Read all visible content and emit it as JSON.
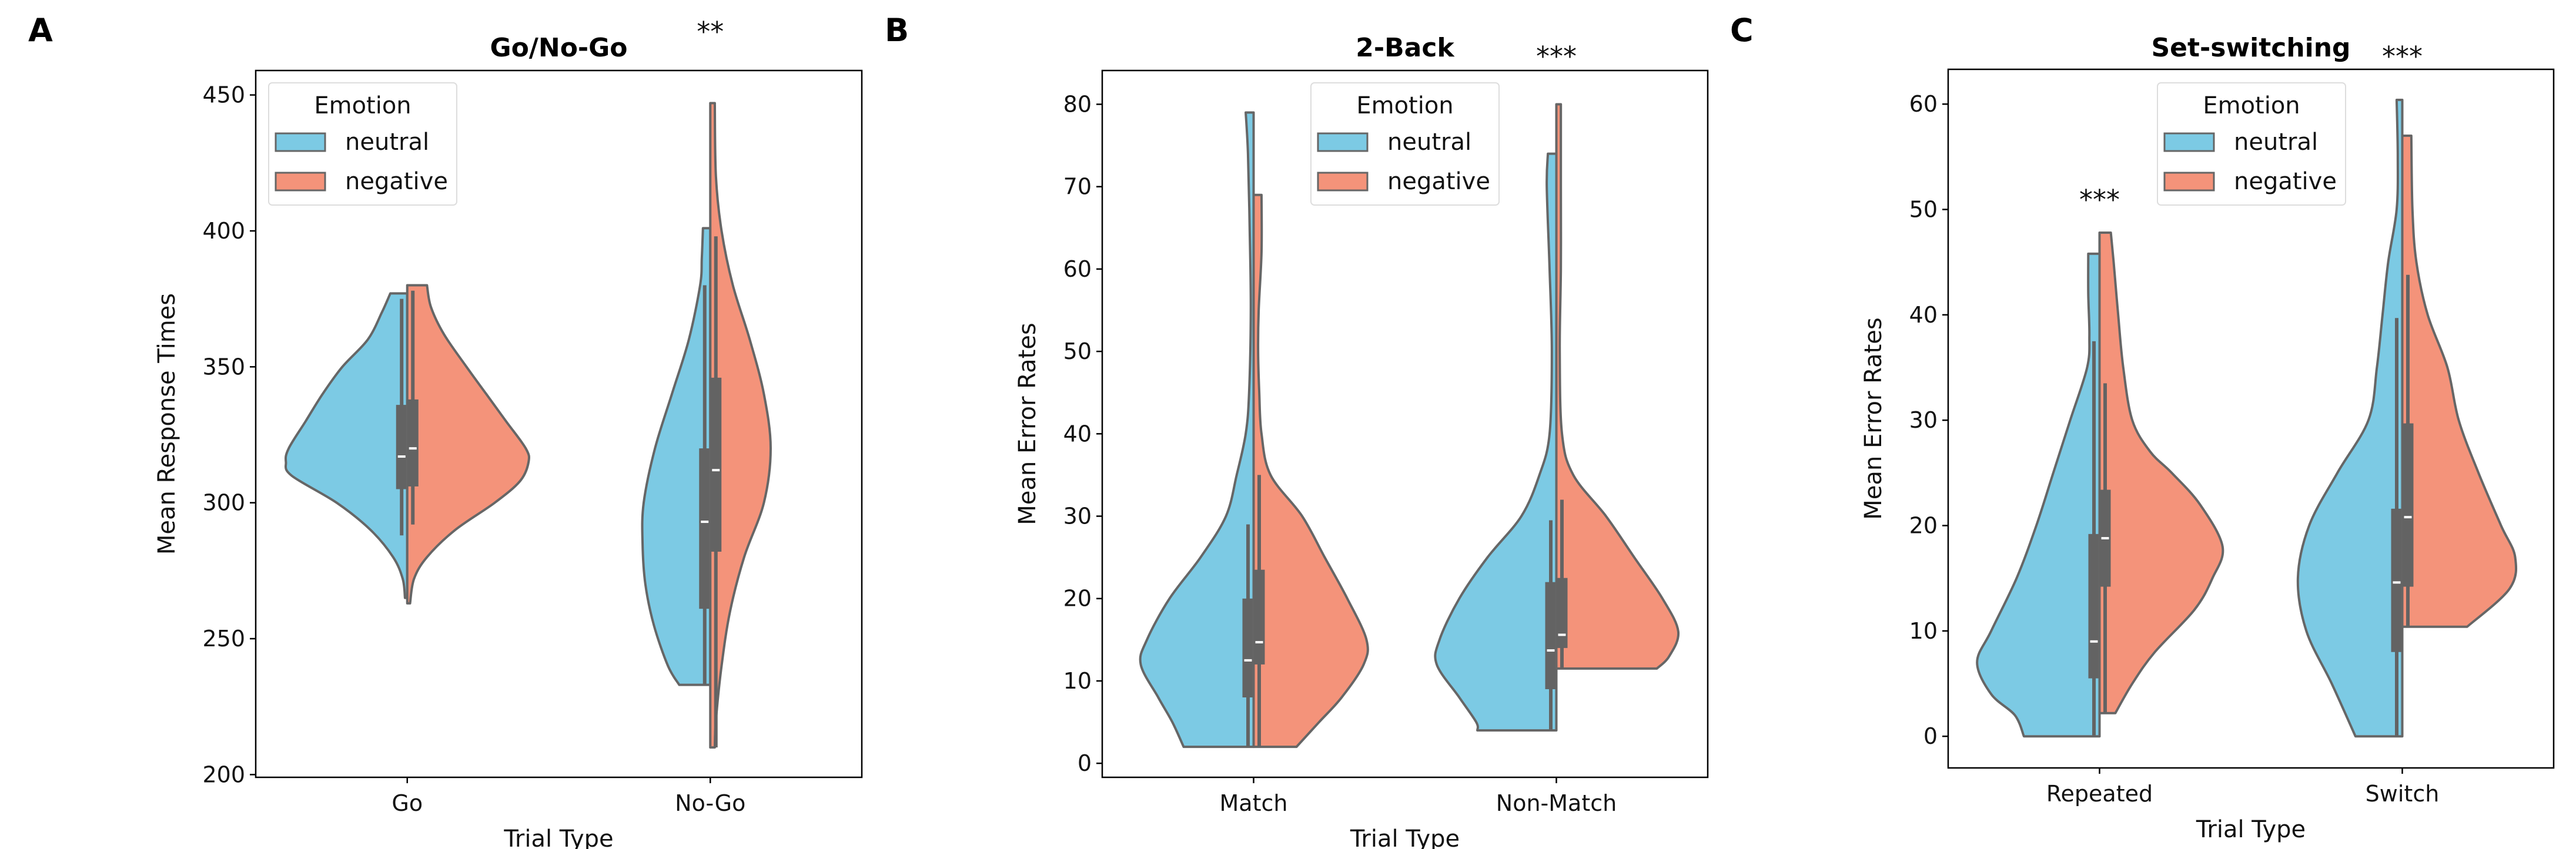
{
  "colors": {
    "neutral": "#7ccae4",
    "negative": "#f4937a",
    "edge": "#666666",
    "box": "#636363",
    "median": "#ffffff"
  },
  "chart_data": [
    {
      "type": "violin-split",
      "panel_label": "A",
      "title": "Go/No-Go",
      "xlabel": "Trial Type",
      "ylabel": "Mean Response Times",
      "ylim": [
        199,
        459
      ],
      "yticks": [
        200,
        250,
        300,
        350,
        400,
        450
      ],
      "categories": [
        "Go",
        "No-Go"
      ],
      "legend": {
        "title": "Emotion",
        "entries": [
          "neutral",
          "negative"
        ],
        "placement": "upper-left"
      },
      "annotations": [
        {
          "category": "No-Go",
          "text": "**",
          "placement": "above-axes"
        }
      ],
      "violins": [
        {
          "neutral": {
            "box": {
              "whisker_low": 288,
              "q1": 305,
              "median": 317,
              "q3": 336,
              "whisker_high": 375
            },
            "profile": [
              [
                377,
                30
              ],
              [
                370,
                45
              ],
              [
                360,
                70
              ],
              [
                350,
                115
              ],
              [
                340,
                150
              ],
              [
                330,
                180
              ],
              [
                320,
                210
              ],
              [
                315,
                215
              ],
              [
                310,
                205
              ],
              [
                300,
                125
              ],
              [
                290,
                65
              ],
              [
                280,
                25
              ],
              [
                272,
                8
              ],
              [
                265,
                4
              ]
            ]
          },
          "negative": {
            "box": {
              "whisker_low": 292,
              "q1": 306,
              "median": 320,
              "q3": 338,
              "whisker_high": 378
            },
            "profile": [
              [
                380,
                35
              ],
              [
                372,
                42
              ],
              [
                362,
                65
              ],
              [
                350,
                105
              ],
              [
                340,
                140
              ],
              [
                330,
                175
              ],
              [
                320,
                210
              ],
              [
                315,
                215
              ],
              [
                308,
                200
              ],
              [
                300,
                155
              ],
              [
                290,
                85
              ],
              [
                280,
                35
              ],
              [
                272,
                12
              ],
              [
                263,
                5
              ]
            ]
          }
        },
        {
          "neutral": {
            "box": {
              "whisker_low": 233,
              "q1": 261,
              "median": 293,
              "q3": 320,
              "whisker_high": 380
            },
            "profile": [
              [
                401,
                13
              ],
              [
                390,
                15
              ],
              [
                380,
                18
              ],
              [
                360,
                38
              ],
              [
                340,
                68
              ],
              [
                320,
                98
              ],
              [
                300,
                118
              ],
              [
                285,
                120
              ],
              [
                270,
                115
              ],
              [
                255,
                100
              ],
              [
                240,
                75
              ],
              [
                233,
                55
              ]
            ]
          },
          "negative": {
            "box": {
              "whisker_low": 210,
              "q1": 282,
              "median": 312,
              "q3": 346,
              "whisker_high": 398
            },
            "profile": [
              [
                447,
                8
              ],
              [
                420,
                10
              ],
              [
                400,
                20
              ],
              [
                380,
                40
              ],
              [
                360,
                70
              ],
              [
                340,
                95
              ],
              [
                320,
                107
              ],
              [
                300,
                95
              ],
              [
                280,
                60
              ],
              [
                260,
                35
              ],
              [
                240,
                20
              ],
              [
                220,
                10
              ],
              [
                210,
                8
              ]
            ]
          }
        }
      ]
    },
    {
      "type": "violin-split",
      "panel_label": "B",
      "title": "2-Back",
      "xlabel": "Trial Type",
      "ylabel": "Mean Error Rates",
      "ylim": [
        -1.7,
        84.1
      ],
      "yticks": [
        0,
        10,
        20,
        30,
        40,
        50,
        60,
        70,
        80
      ],
      "categories": [
        "Match",
        "Non-Match"
      ],
      "legend": {
        "title": "Emotion",
        "entries": [
          "neutral",
          "negative"
        ],
        "placement": "upper-center"
      },
      "annotations": [
        {
          "category": "Non-Match",
          "text": "***",
          "placement": "above-axes"
        }
      ],
      "violins": [
        {
          "neutral": {
            "box": {
              "whisker_low": 2,
              "q1": 8,
              "median": 12.5,
              "q3": 20,
              "whisker_high": 29
            },
            "profile": [
              [
                79,
                14
              ],
              [
                74,
                10
              ],
              [
                65,
                7
              ],
              [
                55,
                5
              ],
              [
                45,
                8
              ],
              [
                40,
                14
              ],
              [
                35,
                30
              ],
              [
                30,
                49
              ],
              [
                25,
                94
              ],
              [
                20,
                149
              ],
              [
                15,
                189
              ],
              [
                12,
                200
              ],
              [
                8,
                169
              ],
              [
                5,
                144
              ],
              [
                2,
                124
              ]
            ]
          },
          "negative": {
            "box": {
              "whisker_low": 2,
              "q1": 12,
              "median": 14.7,
              "q3": 23.5,
              "whisker_high": 35
            },
            "profile": [
              [
                69,
                14
              ],
              [
                62,
                14
              ],
              [
                55,
                9
              ],
              [
                50,
                8
              ],
              [
                45,
                10
              ],
              [
                40,
                14
              ],
              [
                35,
                30
              ],
              [
                30,
                86
              ],
              [
                25,
                126
              ],
              [
                20,
                166
              ],
              [
                15,
                200
              ],
              [
                12,
                195
              ],
              [
                8,
                156
              ],
              [
                5,
                116
              ],
              [
                2,
                76
              ]
            ]
          }
        },
        {
          "neutral": {
            "box": {
              "whisker_low": 4,
              "q1": 9,
              "median": 13.7,
              "q3": 22,
              "whisker_high": 29.5
            },
            "profile": [
              [
                74,
                15
              ],
              [
                70,
                17
              ],
              [
                60,
                12
              ],
              [
                50,
                8
              ],
              [
                40,
                12
              ],
              [
                35,
                30
              ],
              [
                30,
                62
              ],
              [
                25,
                122
              ],
              [
                20,
                172
              ],
              [
                15,
                207
              ],
              [
                12,
                212
              ],
              [
                8,
                172
              ],
              [
                5,
                142
              ],
              [
                4,
                140
              ]
            ]
          },
          "negative": {
            "box": {
              "whisker_low": 11.5,
              "q1": 14,
              "median": 15.6,
              "q3": 22.5,
              "whisker_high": 32
            },
            "profile": [
              [
                80,
                8
              ],
              [
                70,
                8
              ],
              [
                60,
                8
              ],
              [
                50,
                6
              ],
              [
                40,
                10
              ],
              [
                35,
                30
              ],
              [
                30,
                88
              ],
              [
                25,
                138
              ],
              [
                20,
                188
              ],
              [
                16,
                216
              ],
              [
                13,
                200
              ],
              [
                11.5,
                178
              ]
            ]
          }
        }
      ]
    },
    {
      "type": "violin-split",
      "panel_label": "C",
      "title": "Set-switching",
      "xlabel": "Trial Type",
      "ylabel": "Mean Error Rates",
      "ylim": [
        -3.0,
        63.3
      ],
      "yticks": [
        0,
        10,
        20,
        30,
        40,
        50,
        60
      ],
      "categories": [
        "Repeated",
        "Switch"
      ],
      "legend": {
        "title": "Emotion",
        "entries": [
          "neutral",
          "negative"
        ],
        "placement": "upper-center"
      },
      "annotations": [
        {
          "category": "Repeated",
          "text": "***",
          "placement": "above-violin"
        },
        {
          "category": "Switch",
          "text": "***",
          "placement": "above-axes"
        }
      ],
      "violins": [
        {
          "neutral": {
            "box": {
              "whisker_low": 0,
              "q1": 5.5,
              "median": 9,
              "q3": 19.2,
              "whisker_high": 37.5
            },
            "profile": [
              [
                45.8,
                20
              ],
              [
                42,
                20
              ],
              [
                38,
                18
              ],
              [
                35,
                22
              ],
              [
                30,
                52
              ],
              [
                25,
                82
              ],
              [
                20,
                112
              ],
              [
                15,
                147
              ],
              [
                10,
                192
              ],
              [
                7,
                217
              ],
              [
                4,
                192
              ],
              [
                2,
                150
              ],
              [
                0,
                134
              ]
            ]
          },
          "negative": {
            "box": {
              "whisker_low": 2.2,
              "q1": 14.2,
              "median": 18.8,
              "q3": 23.4,
              "whisker_high": 33.5
            },
            "profile": [
              [
                47.8,
                20
              ],
              [
                45,
                25
              ],
              [
                40,
                33
              ],
              [
                35,
                42
              ],
              [
                30,
                58
              ],
              [
                27,
                90
              ],
              [
                25,
                128
              ],
              [
                22,
                178
              ],
              [
                18,
                218
              ],
              [
                15,
                200
              ],
              [
                12,
                168
              ],
              [
                8,
                98
              ],
              [
                5,
                58
              ],
              [
                2.2,
                28
              ]
            ]
          }
        },
        {
          "neutral": {
            "box": {
              "whisker_low": 0,
              "q1": 8,
              "median": 14.6,
              "q3": 21.6,
              "whisker_high": 39.7
            },
            "profile": [
              [
                60.4,
                10
              ],
              [
                55,
                8
              ],
              [
                50,
                10
              ],
              [
                45,
                25
              ],
              [
                40,
                35
              ],
              [
                35,
                45
              ],
              [
                30,
                60
              ],
              [
                25,
                115
              ],
              [
                20,
                165
              ],
              [
                15,
                185
              ],
              [
                10,
                170
              ],
              [
                5,
                125
              ],
              [
                0,
                83
              ]
            ]
          },
          "negative": {
            "box": {
              "whisker_low": 10.4,
              "q1": 14.2,
              "median": 20.8,
              "q3": 29.7,
              "whisker_high": 43.8
            },
            "profile": [
              [
                57,
                16
              ],
              [
                50,
                18
              ],
              [
                45,
                25
              ],
              [
                40,
                45
              ],
              [
                35,
                80
              ],
              [
                30,
                100
              ],
              [
                25,
                135
              ],
              [
                20,
                175
              ],
              [
                17,
                200
              ],
              [
                14,
                190
              ],
              [
                10.4,
                115
              ]
            ]
          }
        }
      ]
    }
  ]
}
